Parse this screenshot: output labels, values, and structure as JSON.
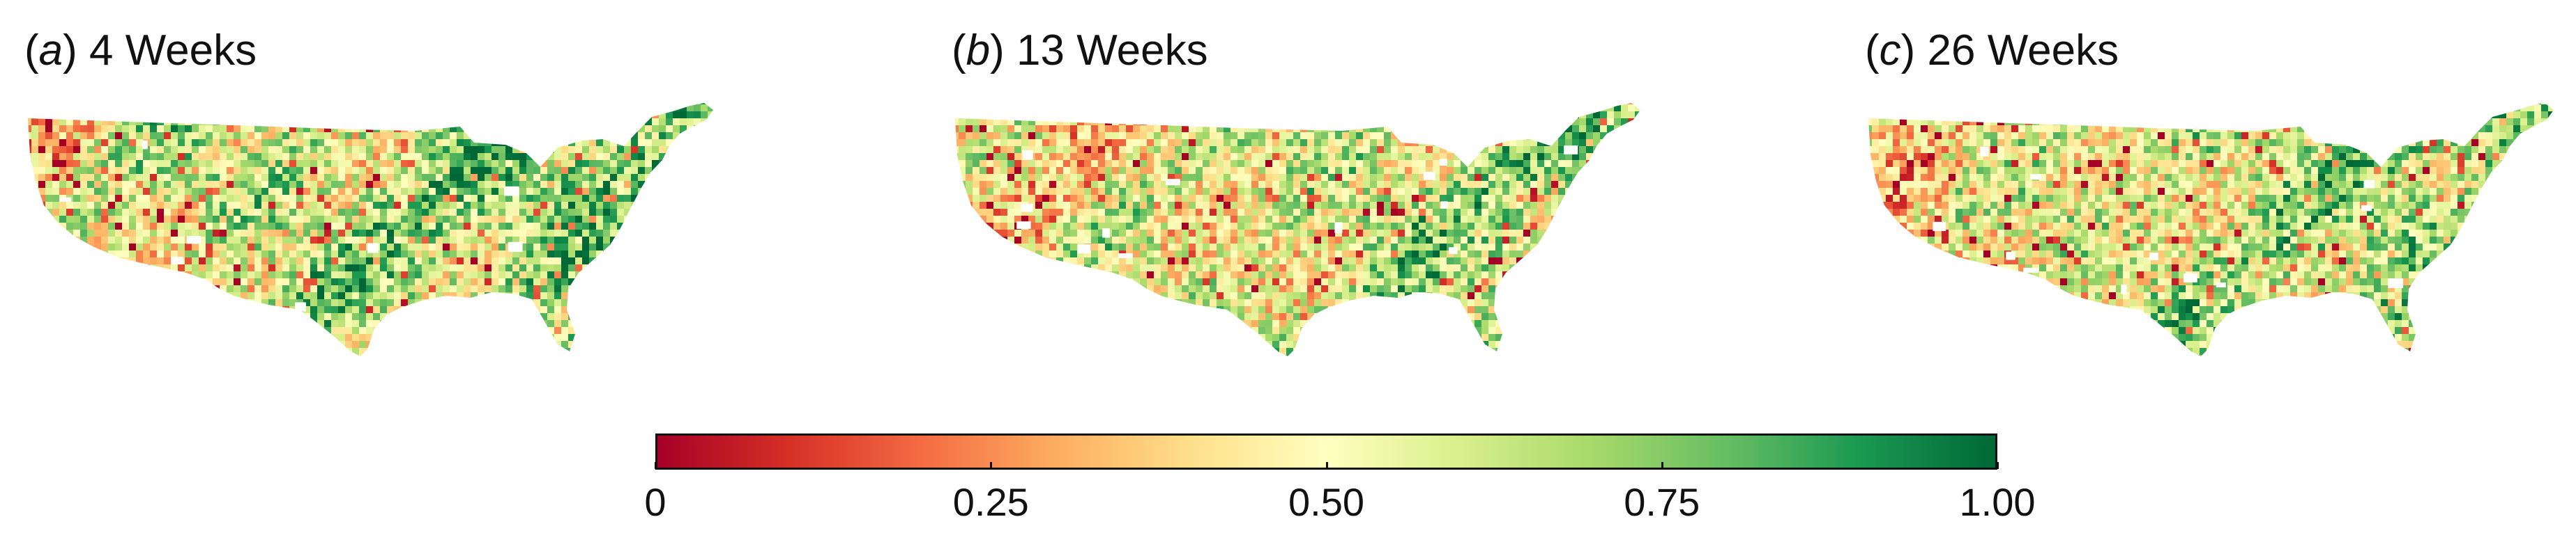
{
  "panels": [
    {
      "letter": "a",
      "title": "4 Weeks",
      "seed": 11,
      "dry_bias": 0.0
    },
    {
      "letter": "b",
      "title": "13 Weeks",
      "seed": 29,
      "dry_bias": 0.08
    },
    {
      "letter": "c",
      "title": "26 Weeks",
      "seed": 53,
      "dry_bias": 0.05
    }
  ],
  "colorbar": {
    "ticks": [
      "0",
      "0.25",
      "0.50",
      "0.75",
      "1.00"
    ],
    "tick_values": [
      0,
      0.25,
      0.5,
      0.75,
      1.0
    ],
    "range": [
      0,
      1
    ],
    "colors": [
      "#a50026",
      "#d73027",
      "#f46d43",
      "#fdae61",
      "#fee08b",
      "#ffffbf",
      "#d9ef8b",
      "#a6d96a",
      "#66bd63",
      "#1a9850",
      "#006837"
    ]
  }
}
